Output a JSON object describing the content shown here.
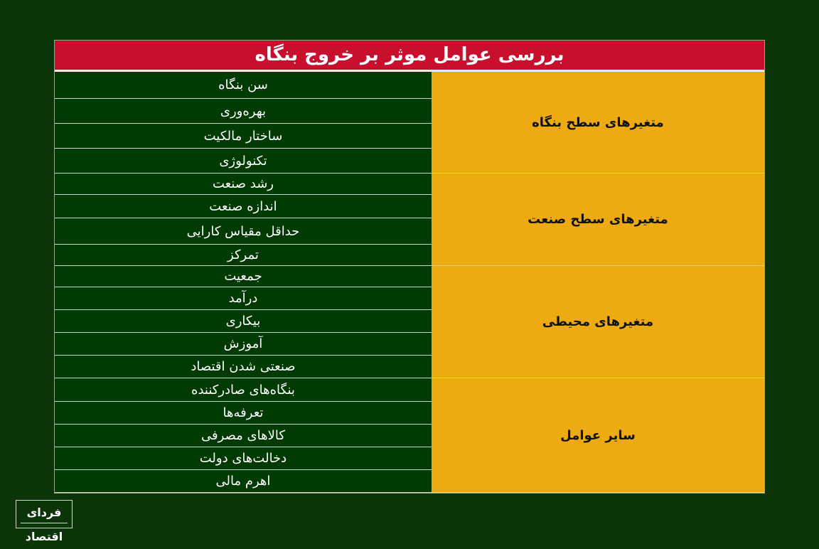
{
  "title": "بررسی عوامل موثر بر خروج بنگاه",
  "groups": [
    {
      "label": "متغیرهای سطح بنگاه",
      "items": [
        "سن بنگاه",
        "بهره‌وری",
        "ساختار مالکیت",
        "تکنولوژی"
      ]
    },
    {
      "label": "متغیرهای سطح صنعت",
      "items": [
        "رشد صنعت",
        "اندازه صنعت",
        "حداقل مقیاس کارایی",
        "تمرکز"
      ]
    },
    {
      "label": "متغیرهای محیطی",
      "items": [
        "جمعیت",
        "درآمد",
        "بیکاری",
        "آموزش",
        "صنعتی شدن اقتصاد"
      ]
    },
    {
      "label": "سایر عوامل",
      "items": [
        "بنگاه‌های صادرکننده",
        "تعرفه‌ها",
        "کالاهای مصرفی",
        "دخالت‌های دولت",
        "اهرم مالی"
      ]
    }
  ],
  "logo": {
    "text": "فردای اقتصاد"
  },
  "colors": {
    "background": "#0c3409",
    "header": "#c8102e",
    "group": "#eeaa12",
    "item": "#023a03"
  }
}
